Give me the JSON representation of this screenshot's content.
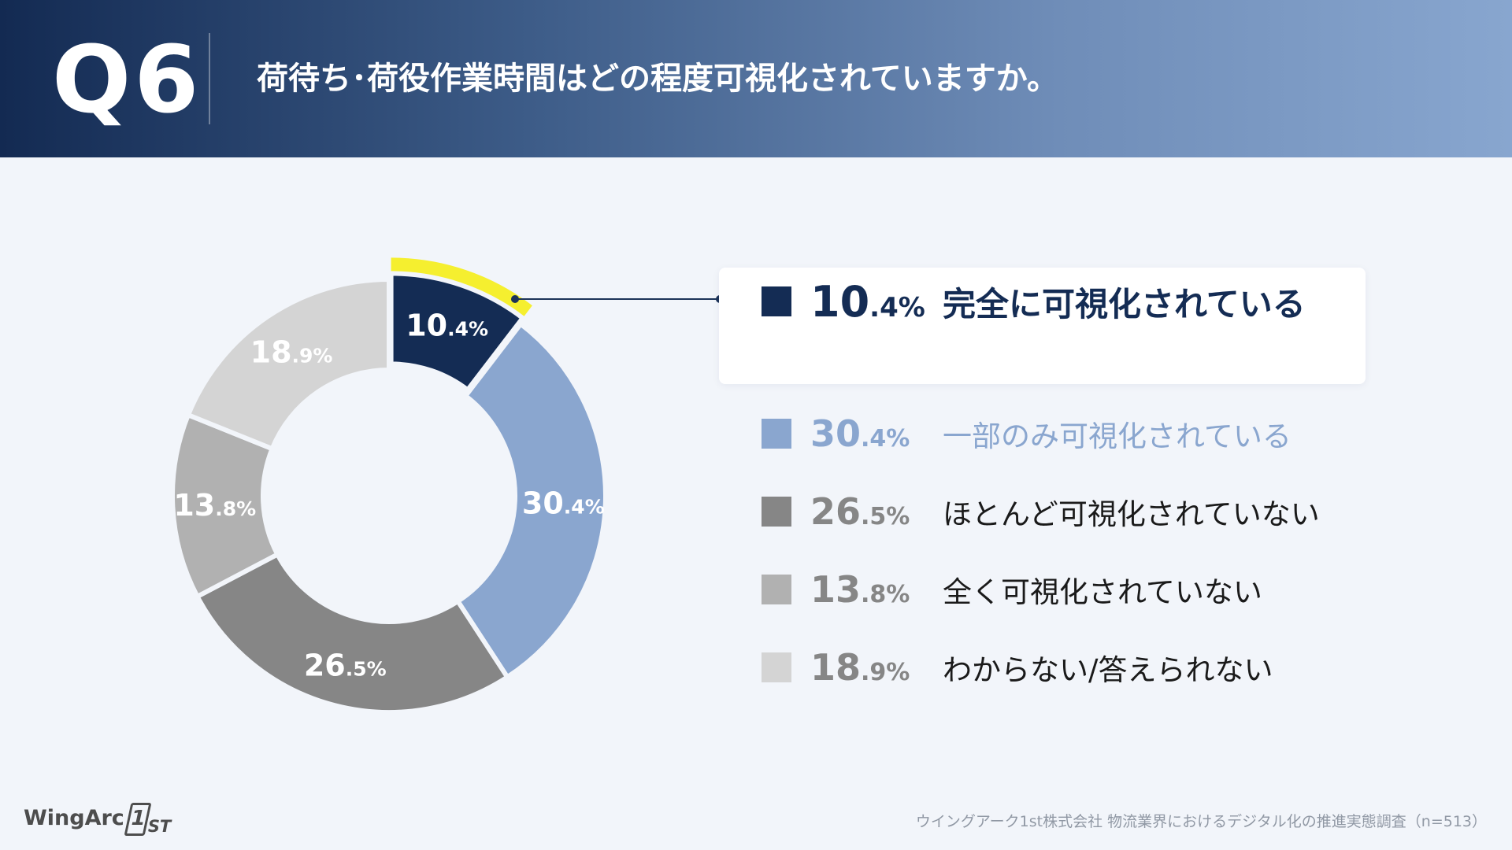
{
  "header": {
    "question_number": "Q6",
    "question_text": "荷待ち･荷役作業時間はどの程度可視化されていますか。"
  },
  "chart_data": {
    "type": "pie",
    "donut": true,
    "title": "荷待ち･荷役作業時間はどの程度可視化されていますか。",
    "highlighted_category": "完全に可視化されている",
    "categories": [
      "完全に可視化されている",
      "一部のみ可視化されている",
      "ほとんど可視化されていない",
      "全く可視化されていない",
      "わからない/答えられない"
    ],
    "values": [
      10.4,
      30.4,
      26.5,
      13.8,
      18.9
    ],
    "value_labels": [
      {
        "int": "10",
        "dec": ".4%"
      },
      {
        "int": "30",
        "dec": ".4%"
      },
      {
        "int": "26",
        "dec": ".5%"
      },
      {
        "int": "13",
        "dec": ".8%"
      },
      {
        "int": "18",
        "dec": ".9%"
      }
    ],
    "colors": [
      "#142c54",
      "#8aa6cf",
      "#868686",
      "#b1b1b1",
      "#d4d4d4"
    ],
    "legend_text_colors": [
      "#142c54",
      "#8aa6cf",
      "#1a1a1a",
      "#1a1a1a",
      "#1a1a1a"
    ],
    "legend_pct_colors": [
      "#142c54",
      "#8aa6cf",
      "#868686",
      "#868686",
      "#868686"
    ],
    "highlight_color": "#f5ef2f",
    "label_color": "#ffffff"
  },
  "footer": {
    "logo_text": "WingArc",
    "logo_mark_number": "1",
    "logo_mark_suffix": "ST",
    "source": "ウイングアーク1st株式会社 物流業界におけるデジタル化の推進実態調査（n=513）"
  }
}
